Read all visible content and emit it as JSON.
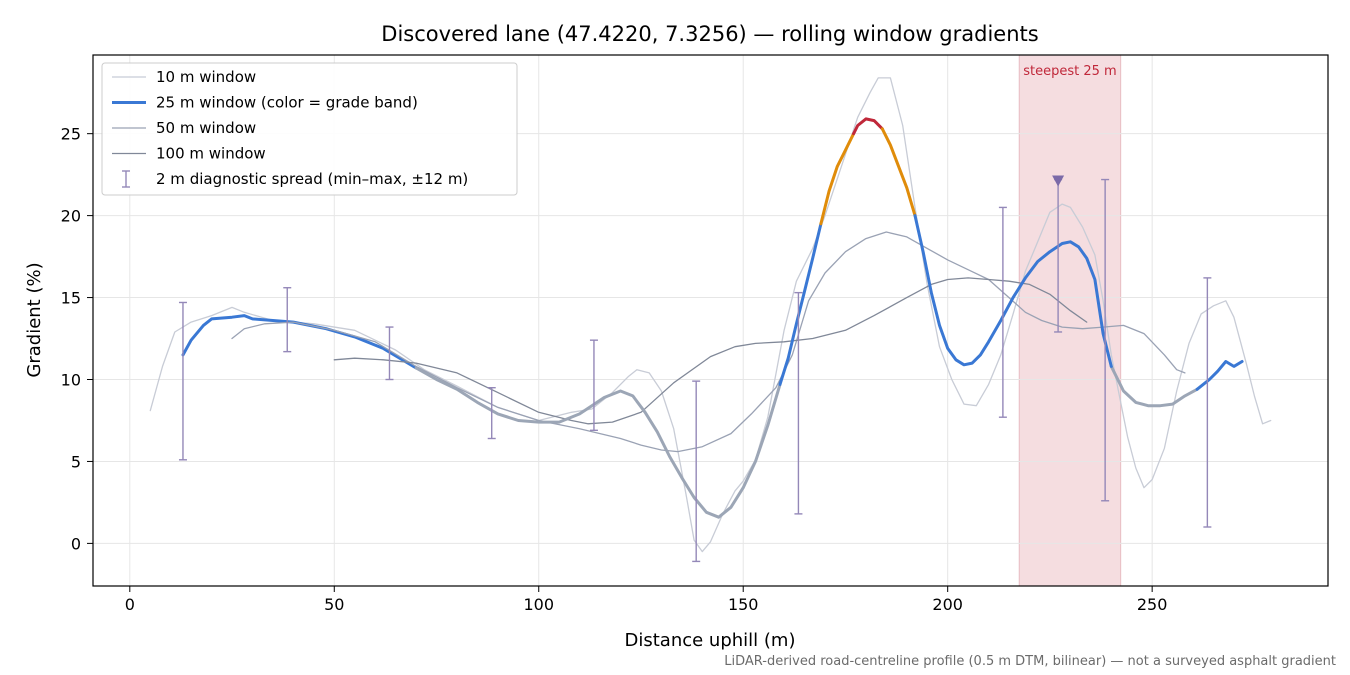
{
  "chart_data": {
    "type": "line",
    "title": "Discovered lane (47.4220, 7.3256) — rolling window gradients",
    "xlabel": "Distance uphill (m)",
    "ylabel": "Gradient (%)",
    "xlim": [
      -9,
      293
    ],
    "ylim": [
      -2.6,
      29.8
    ],
    "xticks": [
      0,
      50,
      100,
      150,
      200,
      250
    ],
    "yticks": [
      0,
      5,
      10,
      15,
      20,
      25
    ],
    "grid": true,
    "legend_position": "top-left",
    "footnote": "LiDAR-derived road-centreline profile (0.5 m DTM, bilinear) — not a surveyed asphalt gradient",
    "highlight": {
      "x_start": 217.5,
      "x_end": 242.3,
      "label": "steepest 25 m",
      "color": "#f5dde0",
      "label_color": "#c0283a"
    },
    "steepest_marker": {
      "x": 227,
      "y": 22.2,
      "color": "#7b6aa8"
    },
    "series": [
      {
        "name": "10 m window",
        "color": "#c8ccd6",
        "width": 1.3,
        "points": [
          [
            5,
            8.1
          ],
          [
            8,
            10.8
          ],
          [
            11,
            12.9
          ],
          [
            15,
            13.5
          ],
          [
            20,
            13.9
          ],
          [
            25,
            14.4
          ],
          [
            28,
            14.1
          ],
          [
            35,
            13.6
          ],
          [
            45,
            13.4
          ],
          [
            55,
            13.0
          ],
          [
            65,
            11.8
          ],
          [
            72,
            10.6
          ],
          [
            80,
            9.6
          ],
          [
            90,
            8.3
          ],
          [
            100,
            7.5
          ],
          [
            108,
            8.0
          ],
          [
            113,
            8.2
          ],
          [
            118,
            9.2
          ],
          [
            122,
            10.2
          ],
          [
            124,
            10.6
          ],
          [
            127,
            10.4
          ],
          [
            130,
            9.3
          ],
          [
            133,
            7.0
          ],
          [
            136,
            3.0
          ],
          [
            138,
            0.2
          ],
          [
            140,
            -0.5
          ],
          [
            142,
            0.1
          ],
          [
            145,
            1.8
          ],
          [
            148,
            3.2
          ],
          [
            150,
            3.8
          ],
          [
            153,
            5.1
          ],
          [
            156,
            7.7
          ],
          [
            160,
            13.0
          ],
          [
            163,
            16.0
          ],
          [
            167,
            18.0
          ],
          [
            170,
            20.0
          ],
          [
            174,
            23.0
          ],
          [
            178,
            26.0
          ],
          [
            181,
            27.5
          ],
          [
            183,
            28.4
          ],
          [
            186,
            28.4
          ],
          [
            189,
            25.5
          ],
          [
            192,
            20.5
          ],
          [
            195,
            15.8
          ],
          [
            198,
            12.0
          ],
          [
            201,
            10.0
          ],
          [
            204,
            8.5
          ],
          [
            207,
            8.4
          ],
          [
            210,
            9.7
          ],
          [
            213,
            11.5
          ],
          [
            216,
            14.0
          ],
          [
            219,
            16.6
          ],
          [
            222,
            18.4
          ],
          [
            225,
            20.2
          ],
          [
            228,
            20.7
          ],
          [
            230,
            20.5
          ],
          [
            233,
            19.3
          ],
          [
            236,
            17.6
          ],
          [
            238,
            14.8
          ],
          [
            240,
            11.5
          ],
          [
            242,
            9.0
          ],
          [
            244,
            6.5
          ],
          [
            246,
            4.6
          ],
          [
            248,
            3.4
          ],
          [
            250,
            3.9
          ],
          [
            253,
            5.8
          ],
          [
            256,
            9.3
          ],
          [
            259,
            12.2
          ],
          [
            262,
            14.0
          ],
          [
            265,
            14.5
          ],
          [
            268,
            14.8
          ],
          [
            270,
            13.8
          ],
          [
            273,
            11.0
          ],
          [
            275,
            9.0
          ],
          [
            277,
            7.3
          ],
          [
            279,
            7.5
          ]
        ]
      },
      {
        "name": "25 m window (color = grade band)",
        "color": "#3a78d4",
        "width": 3,
        "points": [
          [
            13,
            11.5
          ],
          [
            15,
            12.4
          ],
          [
            18,
            13.3
          ],
          [
            20,
            13.7
          ],
          [
            25,
            13.8
          ],
          [
            28,
            13.9
          ],
          [
            30,
            13.7
          ],
          [
            40,
            13.5
          ],
          [
            48,
            13.1
          ],
          [
            55,
            12.6
          ],
          [
            62,
            11.9
          ],
          [
            68,
            11.0
          ],
          [
            70,
            10.7
          ]
        ]
      },
      {
        "name": "50 m window",
        "color": "#9aa2b4",
        "width": 1.3,
        "points": [
          [
            25,
            12.5
          ],
          [
            28,
            13.1
          ],
          [
            33,
            13.4
          ],
          [
            40,
            13.5
          ],
          [
            50,
            13.0
          ],
          [
            60,
            12.3
          ],
          [
            70,
            10.8
          ],
          [
            80,
            9.5
          ],
          [
            90,
            8.3
          ],
          [
            100,
            7.5
          ],
          [
            110,
            7.0
          ],
          [
            120,
            6.4
          ],
          [
            125,
            6.0
          ],
          [
            130,
            5.7
          ],
          [
            134,
            5.6
          ],
          [
            140,
            5.9
          ],
          [
            147,
            6.7
          ],
          [
            152,
            7.9
          ],
          [
            158,
            9.5
          ],
          [
            162,
            11.5
          ],
          [
            166,
            14.8
          ],
          [
            170,
            16.5
          ],
          [
            175,
            17.8
          ],
          [
            180,
            18.6
          ],
          [
            185,
            19.0
          ],
          [
            190,
            18.7
          ],
          [
            195,
            18.0
          ],
          [
            200,
            17.3
          ],
          [
            205,
            16.7
          ],
          [
            210,
            16.1
          ],
          [
            215,
            15.0
          ],
          [
            219,
            14.1
          ],
          [
            223,
            13.6
          ],
          [
            228,
            13.2
          ],
          [
            233,
            13.1
          ],
          [
            238,
            13.2
          ],
          [
            243,
            13.3
          ],
          [
            248,
            12.8
          ],
          [
            253,
            11.5
          ],
          [
            256,
            10.6
          ],
          [
            258,
            10.4
          ]
        ]
      },
      {
        "name": "100 m window",
        "color": "#808898",
        "width": 1.3,
        "points": [
          [
            50,
            11.2
          ],
          [
            55,
            11.3
          ],
          [
            62,
            11.2
          ],
          [
            70,
            11.0
          ],
          [
            80,
            10.4
          ],
          [
            90,
            9.2
          ],
          [
            100,
            8.0
          ],
          [
            108,
            7.5
          ],
          [
            112,
            7.3
          ],
          [
            118,
            7.4
          ],
          [
            125,
            8.0
          ],
          [
            133,
            9.8
          ],
          [
            142,
            11.4
          ],
          [
            148,
            12.0
          ],
          [
            153,
            12.2
          ],
          [
            160,
            12.3
          ],
          [
            167,
            12.5
          ],
          [
            175,
            13.0
          ],
          [
            182,
            13.9
          ],
          [
            190,
            15.0
          ],
          [
            196,
            15.8
          ],
          [
            200,
            16.1
          ],
          [
            205,
            16.2
          ],
          [
            210,
            16.1
          ],
          [
            215,
            16.0
          ],
          [
            220,
            15.8
          ],
          [
            225,
            15.2
          ],
          [
            230,
            14.2
          ],
          [
            234,
            13.5
          ]
        ]
      },
      {
        "name": "25 m window (grey)",
        "color": "#9ca6b6",
        "width": 3,
        "in_legend": false,
        "points": [
          [
            70,
            10.7
          ],
          [
            75,
            10.0
          ],
          [
            80,
            9.4
          ],
          [
            85,
            8.6
          ],
          [
            90,
            7.9
          ],
          [
            95,
            7.5
          ],
          [
            100,
            7.4
          ],
          [
            105,
            7.4
          ],
          [
            110,
            7.9
          ],
          [
            113,
            8.4
          ],
          [
            116,
            8.9
          ],
          [
            120,
            9.3
          ],
          [
            123,
            9.0
          ],
          [
            126,
            8.0
          ],
          [
            129,
            6.8
          ],
          [
            132,
            5.3
          ],
          [
            135,
            4.0
          ],
          [
            138,
            2.8
          ],
          [
            141,
            1.9
          ],
          [
            144,
            1.6
          ],
          [
            147,
            2.2
          ],
          [
            150,
            3.4
          ],
          [
            153,
            5.0
          ],
          [
            156,
            7.2
          ],
          [
            159,
            9.7
          ]
        ]
      },
      {
        "name": "25 m window (grey)",
        "color": "#9ca6b6",
        "width": 3,
        "in_legend": false,
        "points": [
          [
            240,
            10.8
          ],
          [
            243,
            9.3
          ],
          [
            246,
            8.6
          ],
          [
            249,
            8.4
          ],
          [
            252,
            8.4
          ],
          [
            255,
            8.5
          ],
          [
            258,
            9.0
          ],
          [
            261,
            9.4
          ]
        ]
      },
      {
        "name": "25 m window (blue)",
        "color": "#3a78d4",
        "width": 3,
        "in_legend": false,
        "points": [
          [
            159,
            9.7
          ],
          [
            161,
            11.3
          ],
          [
            163,
            13.4
          ],
          [
            165,
            15.4
          ],
          [
            167,
            17.4
          ],
          [
            169,
            19.5
          ]
        ]
      },
      {
        "name": "25 m window (orange)",
        "color": "#e08c0a",
        "width": 3,
        "in_legend": false,
        "points": [
          [
            169,
            19.5
          ],
          [
            171,
            21.5
          ],
          [
            173,
            23.0
          ],
          [
            175,
            24.0
          ],
          [
            177,
            25.0
          ]
        ]
      },
      {
        "name": "25 m window (red)",
        "color": "#c0283a",
        "width": 3,
        "in_legend": false,
        "points": [
          [
            177,
            25.0
          ],
          [
            178,
            25.5
          ],
          [
            180,
            25.9
          ],
          [
            182,
            25.8
          ],
          [
            184,
            25.3
          ]
        ]
      },
      {
        "name": "25 m window (orange)",
        "color": "#e08c0a",
        "width": 3,
        "in_legend": false,
        "points": [
          [
            184,
            25.3
          ],
          [
            186,
            24.3
          ],
          [
            188,
            23.0
          ],
          [
            190,
            21.7
          ],
          [
            192,
            20.0
          ]
        ]
      },
      {
        "name": "25 m window (blue)",
        "color": "#3a78d4",
        "width": 3,
        "in_legend": false,
        "points": [
          [
            192,
            20.0
          ],
          [
            194,
            17.8
          ],
          [
            196,
            15.3
          ],
          [
            198,
            13.3
          ],
          [
            200,
            11.9
          ],
          [
            202,
            11.2
          ],
          [
            204,
            10.9
          ],
          [
            206,
            11.0
          ],
          [
            208,
            11.5
          ],
          [
            210,
            12.3
          ],
          [
            213,
            13.6
          ],
          [
            216,
            15.0
          ],
          [
            219,
            16.2
          ],
          [
            222,
            17.2
          ],
          [
            225,
            17.8
          ],
          [
            228,
            18.3
          ],
          [
            230,
            18.4
          ],
          [
            232,
            18.1
          ],
          [
            234,
            17.4
          ],
          [
            236,
            16.1
          ],
          [
            238,
            12.8
          ],
          [
            240,
            10.8
          ]
        ]
      },
      {
        "name": "25 m window (blue)",
        "color": "#3a78d4",
        "width": 3,
        "in_legend": false,
        "points": [
          [
            261,
            9.4
          ],
          [
            264,
            10.0
          ],
          [
            266,
            10.5
          ],
          [
            268,
            11.1
          ],
          [
            270,
            10.8
          ],
          [
            272,
            11.1
          ]
        ]
      }
    ],
    "errorbars": {
      "name": "2 m diagnostic spread (min–max, ±12 m)",
      "color": "#9488b8",
      "points": [
        {
          "x": 13,
          "y": 11.6,
          "low": 5.1,
          "high": 14.7
        },
        {
          "x": 38.5,
          "y": 13.5,
          "low": 11.7,
          "high": 15.6
        },
        {
          "x": 63.5,
          "y": 11.9,
          "low": 10.0,
          "high": 13.2
        },
        {
          "x": 88.5,
          "y": 8.2,
          "low": 6.4,
          "high": 9.5
        },
        {
          "x": 113.5,
          "y": 8.3,
          "low": 6.9,
          "high": 12.4
        },
        {
          "x": 138.5,
          "y": 2.6,
          "low": -1.1,
          "high": 9.9
        },
        {
          "x": 163.5,
          "y": 13.9,
          "low": 1.8,
          "high": 15.3
        },
        {
          "x": 213.5,
          "y": 13.6,
          "low": 7.7,
          "high": 20.5
        },
        {
          "x": 227,
          "y": 18.2,
          "low": 12.9,
          "high": 22.2
        },
        {
          "x": 238.5,
          "y": 12.7,
          "low": 2.6,
          "high": 22.2
        },
        {
          "x": 263.5,
          "y": 9.9,
          "low": 1.0,
          "high": 16.2
        }
      ]
    }
  }
}
